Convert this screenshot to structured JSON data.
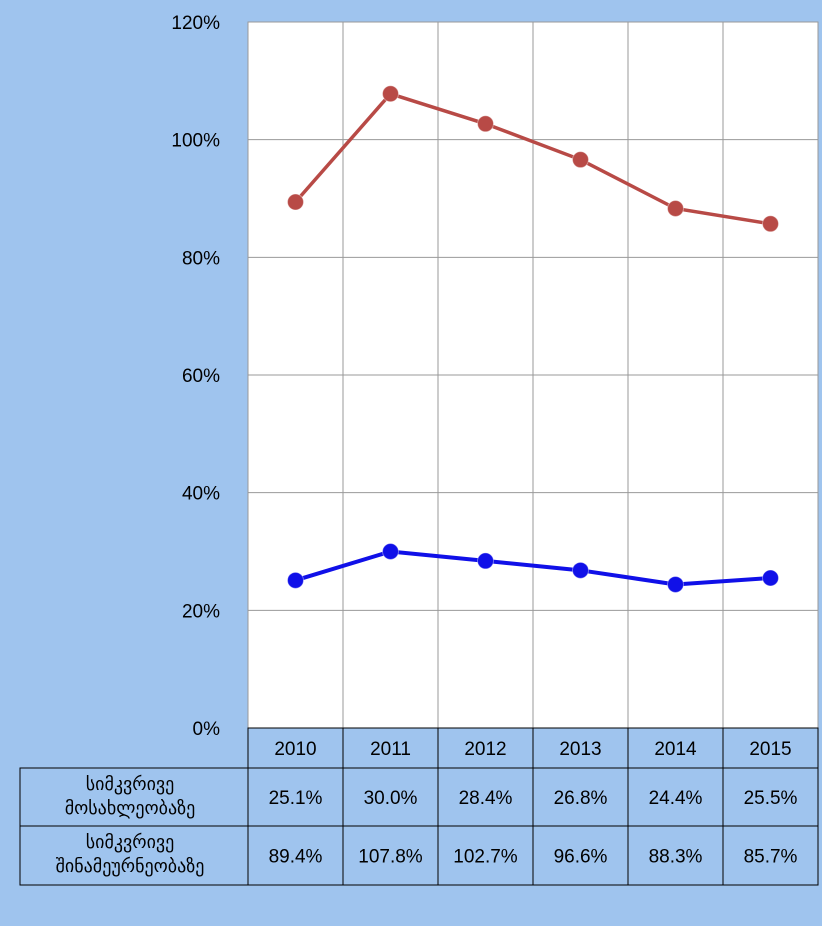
{
  "chart_data": {
    "type": "line",
    "categories": [
      "2010",
      "2011",
      "2012",
      "2013",
      "2014",
      "2015"
    ],
    "series": [
      {
        "name": "სიმკვრივე მოსახლეობაზე",
        "color": "#1010e8",
        "values": [
          25.1,
          30.0,
          28.4,
          26.8,
          24.4,
          25.5
        ],
        "value_labels": [
          "25.1%",
          "30.0%",
          "28.4%",
          "26.8%",
          "24.4%",
          "25.5%"
        ]
      },
      {
        "name": "სიმკვრივე შინამეურნეობაზე",
        "color": "#b84a46",
        "values": [
          89.4,
          107.8,
          102.7,
          96.6,
          88.3,
          85.7
        ],
        "value_labels": [
          "89.4%",
          "107.8%",
          "102.7%",
          "96.6%",
          "88.3%",
          "85.7%"
        ]
      }
    ],
    "ylim": [
      0,
      120
    ],
    "yticks": [
      {
        "value": 0,
        "label": "0%"
      },
      {
        "value": 20,
        "label": "20%"
      },
      {
        "value": 40,
        "label": "40%"
      },
      {
        "value": 60,
        "label": "60%"
      },
      {
        "value": 80,
        "label": "80%"
      },
      {
        "value": 100,
        "label": "100%"
      },
      {
        "value": 120,
        "label": "120%"
      }
    ],
    "grid": true
  }
}
